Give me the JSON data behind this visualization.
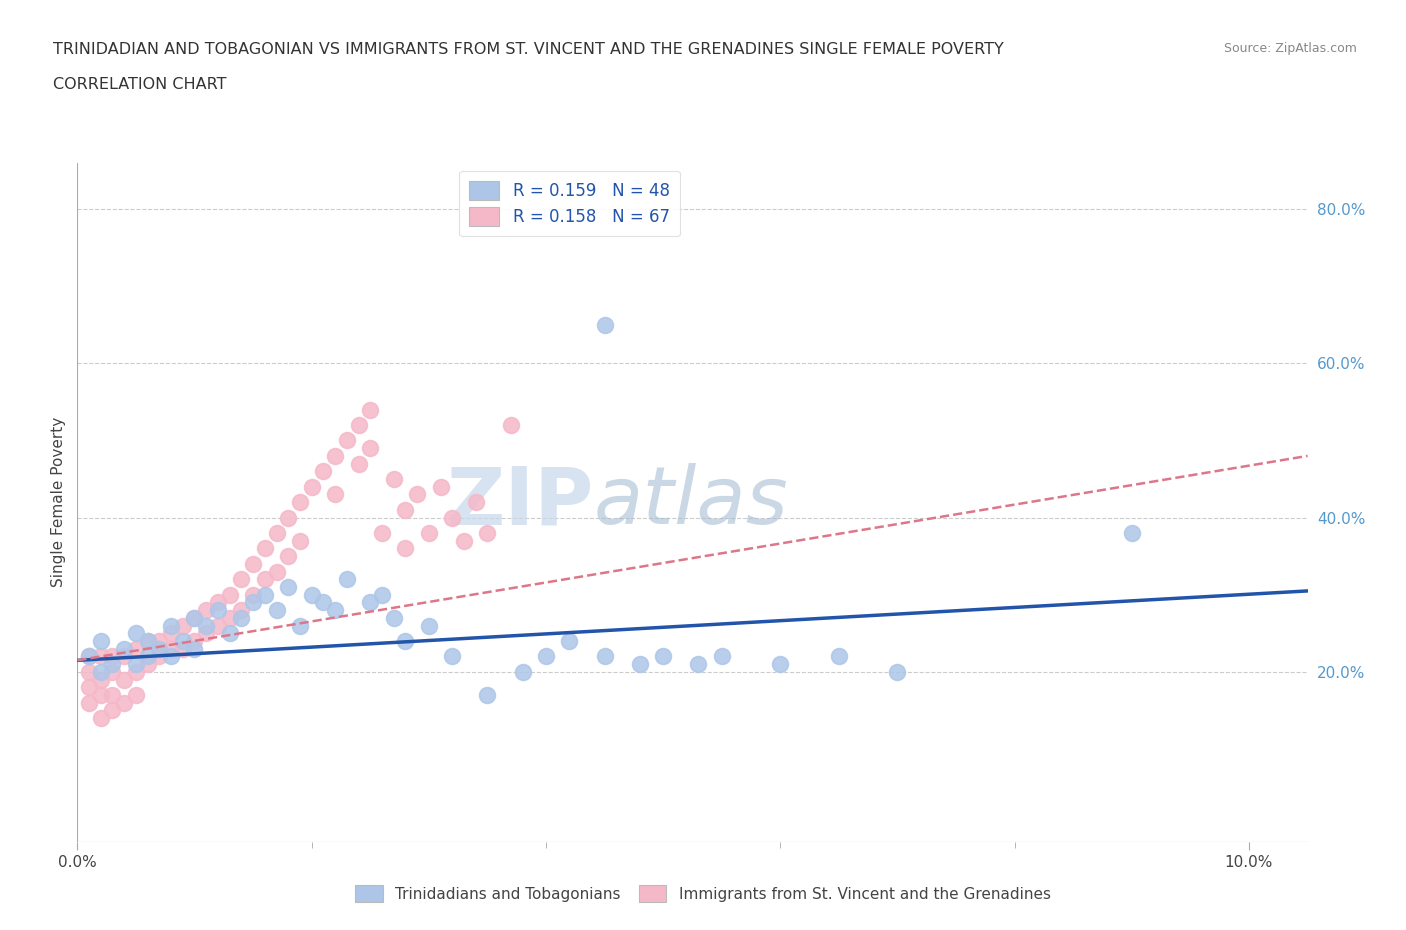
{
  "title_line1": "TRINIDADIAN AND TOBAGONIAN VS IMMIGRANTS FROM ST. VINCENT AND THE GRENADINES SINGLE FEMALE POVERTY",
  "title_line2": "CORRELATION CHART",
  "source": "Source: ZipAtlas.com",
  "ylabel": "Single Female Poverty",
  "xlim": [
    0.0,
    0.105
  ],
  "ylim": [
    -0.02,
    0.86
  ],
  "ytick_labels_right": [
    "20.0%",
    "40.0%",
    "60.0%",
    "80.0%"
  ],
  "ytick_vals_right": [
    0.2,
    0.4,
    0.6,
    0.8
  ],
  "grid_color": "#cccccc",
  "background_color": "#ffffff",
  "watermark_left": "ZIP",
  "watermark_right": "atlas",
  "legend1_R": "0.159",
  "legend1_N": "48",
  "legend2_R": "0.158",
  "legend2_N": "67",
  "blue_color": "#adc6e8",
  "pink_color": "#f5b8c8",
  "blue_line_color": "#2255aa",
  "pink_line_color": "#dd7788",
  "label1": "Trinidadians and Tobagonians",
  "label2": "Immigrants from St. Vincent and the Grenadines",
  "blue_scatter_x": [
    0.001,
    0.002,
    0.002,
    0.003,
    0.004,
    0.005,
    0.005,
    0.006,
    0.006,
    0.007,
    0.008,
    0.008,
    0.009,
    0.01,
    0.01,
    0.011,
    0.012,
    0.013,
    0.014,
    0.015,
    0.016,
    0.017,
    0.018,
    0.019,
    0.02,
    0.021,
    0.022,
    0.023,
    0.025,
    0.026,
    0.027,
    0.028,
    0.03,
    0.032,
    0.035,
    0.038,
    0.04,
    0.042,
    0.045,
    0.048,
    0.05,
    0.053,
    0.055,
    0.06,
    0.065,
    0.07,
    0.09,
    0.045
  ],
  "blue_scatter_y": [
    0.22,
    0.24,
    0.2,
    0.21,
    0.23,
    0.25,
    0.21,
    0.24,
    0.22,
    0.23,
    0.26,
    0.22,
    0.24,
    0.27,
    0.23,
    0.26,
    0.28,
    0.25,
    0.27,
    0.29,
    0.3,
    0.28,
    0.31,
    0.26,
    0.3,
    0.29,
    0.28,
    0.32,
    0.29,
    0.3,
    0.27,
    0.24,
    0.26,
    0.22,
    0.17,
    0.2,
    0.22,
    0.24,
    0.22,
    0.21,
    0.22,
    0.21,
    0.22,
    0.21,
    0.22,
    0.2,
    0.38,
    0.65
  ],
  "pink_scatter_x": [
    0.001,
    0.001,
    0.001,
    0.001,
    0.002,
    0.002,
    0.002,
    0.002,
    0.003,
    0.003,
    0.003,
    0.003,
    0.004,
    0.004,
    0.004,
    0.005,
    0.005,
    0.005,
    0.006,
    0.006,
    0.007,
    0.007,
    0.008,
    0.008,
    0.009,
    0.009,
    0.01,
    0.01,
    0.011,
    0.011,
    0.012,
    0.012,
    0.013,
    0.013,
    0.014,
    0.014,
    0.015,
    0.015,
    0.016,
    0.016,
    0.017,
    0.017,
    0.018,
    0.018,
    0.019,
    0.019,
    0.02,
    0.021,
    0.022,
    0.022,
    0.023,
    0.024,
    0.024,
    0.025,
    0.025,
    0.026,
    0.027,
    0.028,
    0.028,
    0.029,
    0.03,
    0.031,
    0.032,
    0.033,
    0.034,
    0.035,
    0.037
  ],
  "pink_scatter_y": [
    0.22,
    0.2,
    0.18,
    0.16,
    0.22,
    0.19,
    0.17,
    0.14,
    0.22,
    0.2,
    0.17,
    0.15,
    0.22,
    0.19,
    0.16,
    0.23,
    0.2,
    0.17,
    0.24,
    0.21,
    0.24,
    0.22,
    0.25,
    0.23,
    0.26,
    0.23,
    0.27,
    0.24,
    0.28,
    0.25,
    0.29,
    0.26,
    0.3,
    0.27,
    0.32,
    0.28,
    0.34,
    0.3,
    0.36,
    0.32,
    0.38,
    0.33,
    0.4,
    0.35,
    0.42,
    0.37,
    0.44,
    0.46,
    0.48,
    0.43,
    0.5,
    0.52,
    0.47,
    0.54,
    0.49,
    0.38,
    0.45,
    0.41,
    0.36,
    0.43,
    0.38,
    0.44,
    0.4,
    0.37,
    0.42,
    0.38,
    0.52
  ],
  "blue_line_x": [
    0.0,
    0.105
  ],
  "blue_line_y": [
    0.215,
    0.305
  ],
  "pink_line_x": [
    0.0,
    0.105
  ],
  "pink_line_y": [
    0.215,
    0.48
  ]
}
